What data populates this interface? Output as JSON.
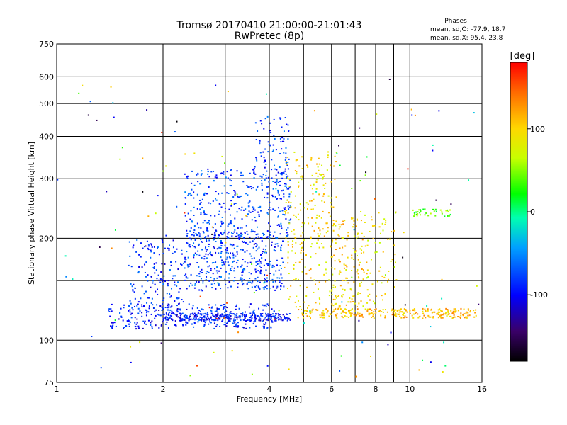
{
  "chart_data": {
    "type": "scatter",
    "title_line1": "Tromsø 20170410 21:00:00-21:01:43",
    "title_line2": "RwPretec (8p)",
    "xlabel": "Frequency [MHz]",
    "ylabel": "Stationary phase Virtual Height [km]",
    "x_scale": "log",
    "y_scale": "log",
    "xlim": [
      1,
      16
    ],
    "ylim": [
      75,
      750
    ],
    "grid": true,
    "x_tick_values": [
      1,
      2,
      4,
      6,
      8,
      10,
      16
    ],
    "x_tick_labels": [
      "1",
      "2",
      "4",
      "6",
      "8",
      "10",
      "16"
    ],
    "x_minor_grid": [
      3,
      5,
      7,
      9
    ],
    "y_tick_values": [
      75,
      100,
      200,
      300,
      400,
      500,
      600,
      750
    ],
    "y_tick_labels": [
      "75",
      "100",
      "200",
      "300",
      "400",
      "500",
      "600",
      "750"
    ],
    "y_minor_grid": [
      150
    ],
    "phases": {
      "title": "Phases",
      "line_o": "mean, sd,O: -77.9, 18.7",
      "line_x": "mean, sd,X:  95.4, 23.8"
    },
    "colorbar": {
      "label": "[deg]",
      "range": [
        -180,
        180
      ],
      "ticks": [
        100,
        0,
        -100
      ],
      "tick_labels": [
        "100",
        "0",
        "-100"
      ],
      "colormap": "rainbow-black-to-red"
    },
    "clusters": [
      {
        "name": "o-trace-low",
        "x_range": [
          1.4,
          4.2
        ],
        "y_range": [
          108,
          128
        ],
        "phase": -90,
        "count": 300
      },
      {
        "name": "o-trace-bottom",
        "x_range": [
          2.0,
          4.6
        ],
        "y_range": [
          114,
          120
        ],
        "phase": -95,
        "count": 260
      },
      {
        "name": "o-rising",
        "x_range": [
          1.6,
          2.3
        ],
        "y_range": [
          120,
          200
        ],
        "phase": -85,
        "count": 160
      },
      {
        "name": "o-layer-mid",
        "x_range": [
          2.3,
          4.4
        ],
        "y_range": [
          140,
          210
        ],
        "phase": -80,
        "count": 420
      },
      {
        "name": "o-layer-high",
        "x_range": [
          2.3,
          4.6
        ],
        "y_range": [
          200,
          320
        ],
        "phase": -78,
        "count": 320
      },
      {
        "name": "o-cusp",
        "x_range": [
          3.6,
          4.6
        ],
        "y_range": [
          260,
          460
        ],
        "phase": -82,
        "count": 120
      },
      {
        "name": "x-trace-mid",
        "x_range": [
          4.4,
          6.2
        ],
        "y_range": [
          120,
          360
        ],
        "phase": 95,
        "count": 240
      },
      {
        "name": "x-trace-bottom",
        "x_range": [
          4.8,
          15.5
        ],
        "y_range": [
          116,
          124
        ],
        "phase": 110,
        "count": 280
      },
      {
        "name": "x-col-6",
        "x_range": [
          6.0,
          7.4
        ],
        "y_range": [
          125,
          230
        ],
        "phase": 100,
        "count": 120
      },
      {
        "name": "x-spread-8",
        "x_range": [
          7.0,
          9.2
        ],
        "y_range": [
          126,
          240
        ],
        "phase": 90,
        "count": 80
      },
      {
        "name": "high-band",
        "x_range": [
          10.2,
          13.2
        ],
        "y_range": [
          232,
          244
        ],
        "phase": 40,
        "count": 40
      },
      {
        "name": "noise",
        "x_range": [
          1.0,
          16.0
        ],
        "y_range": [
          78,
          620
        ],
        "phase": 0,
        "count": 140
      }
    ]
  }
}
